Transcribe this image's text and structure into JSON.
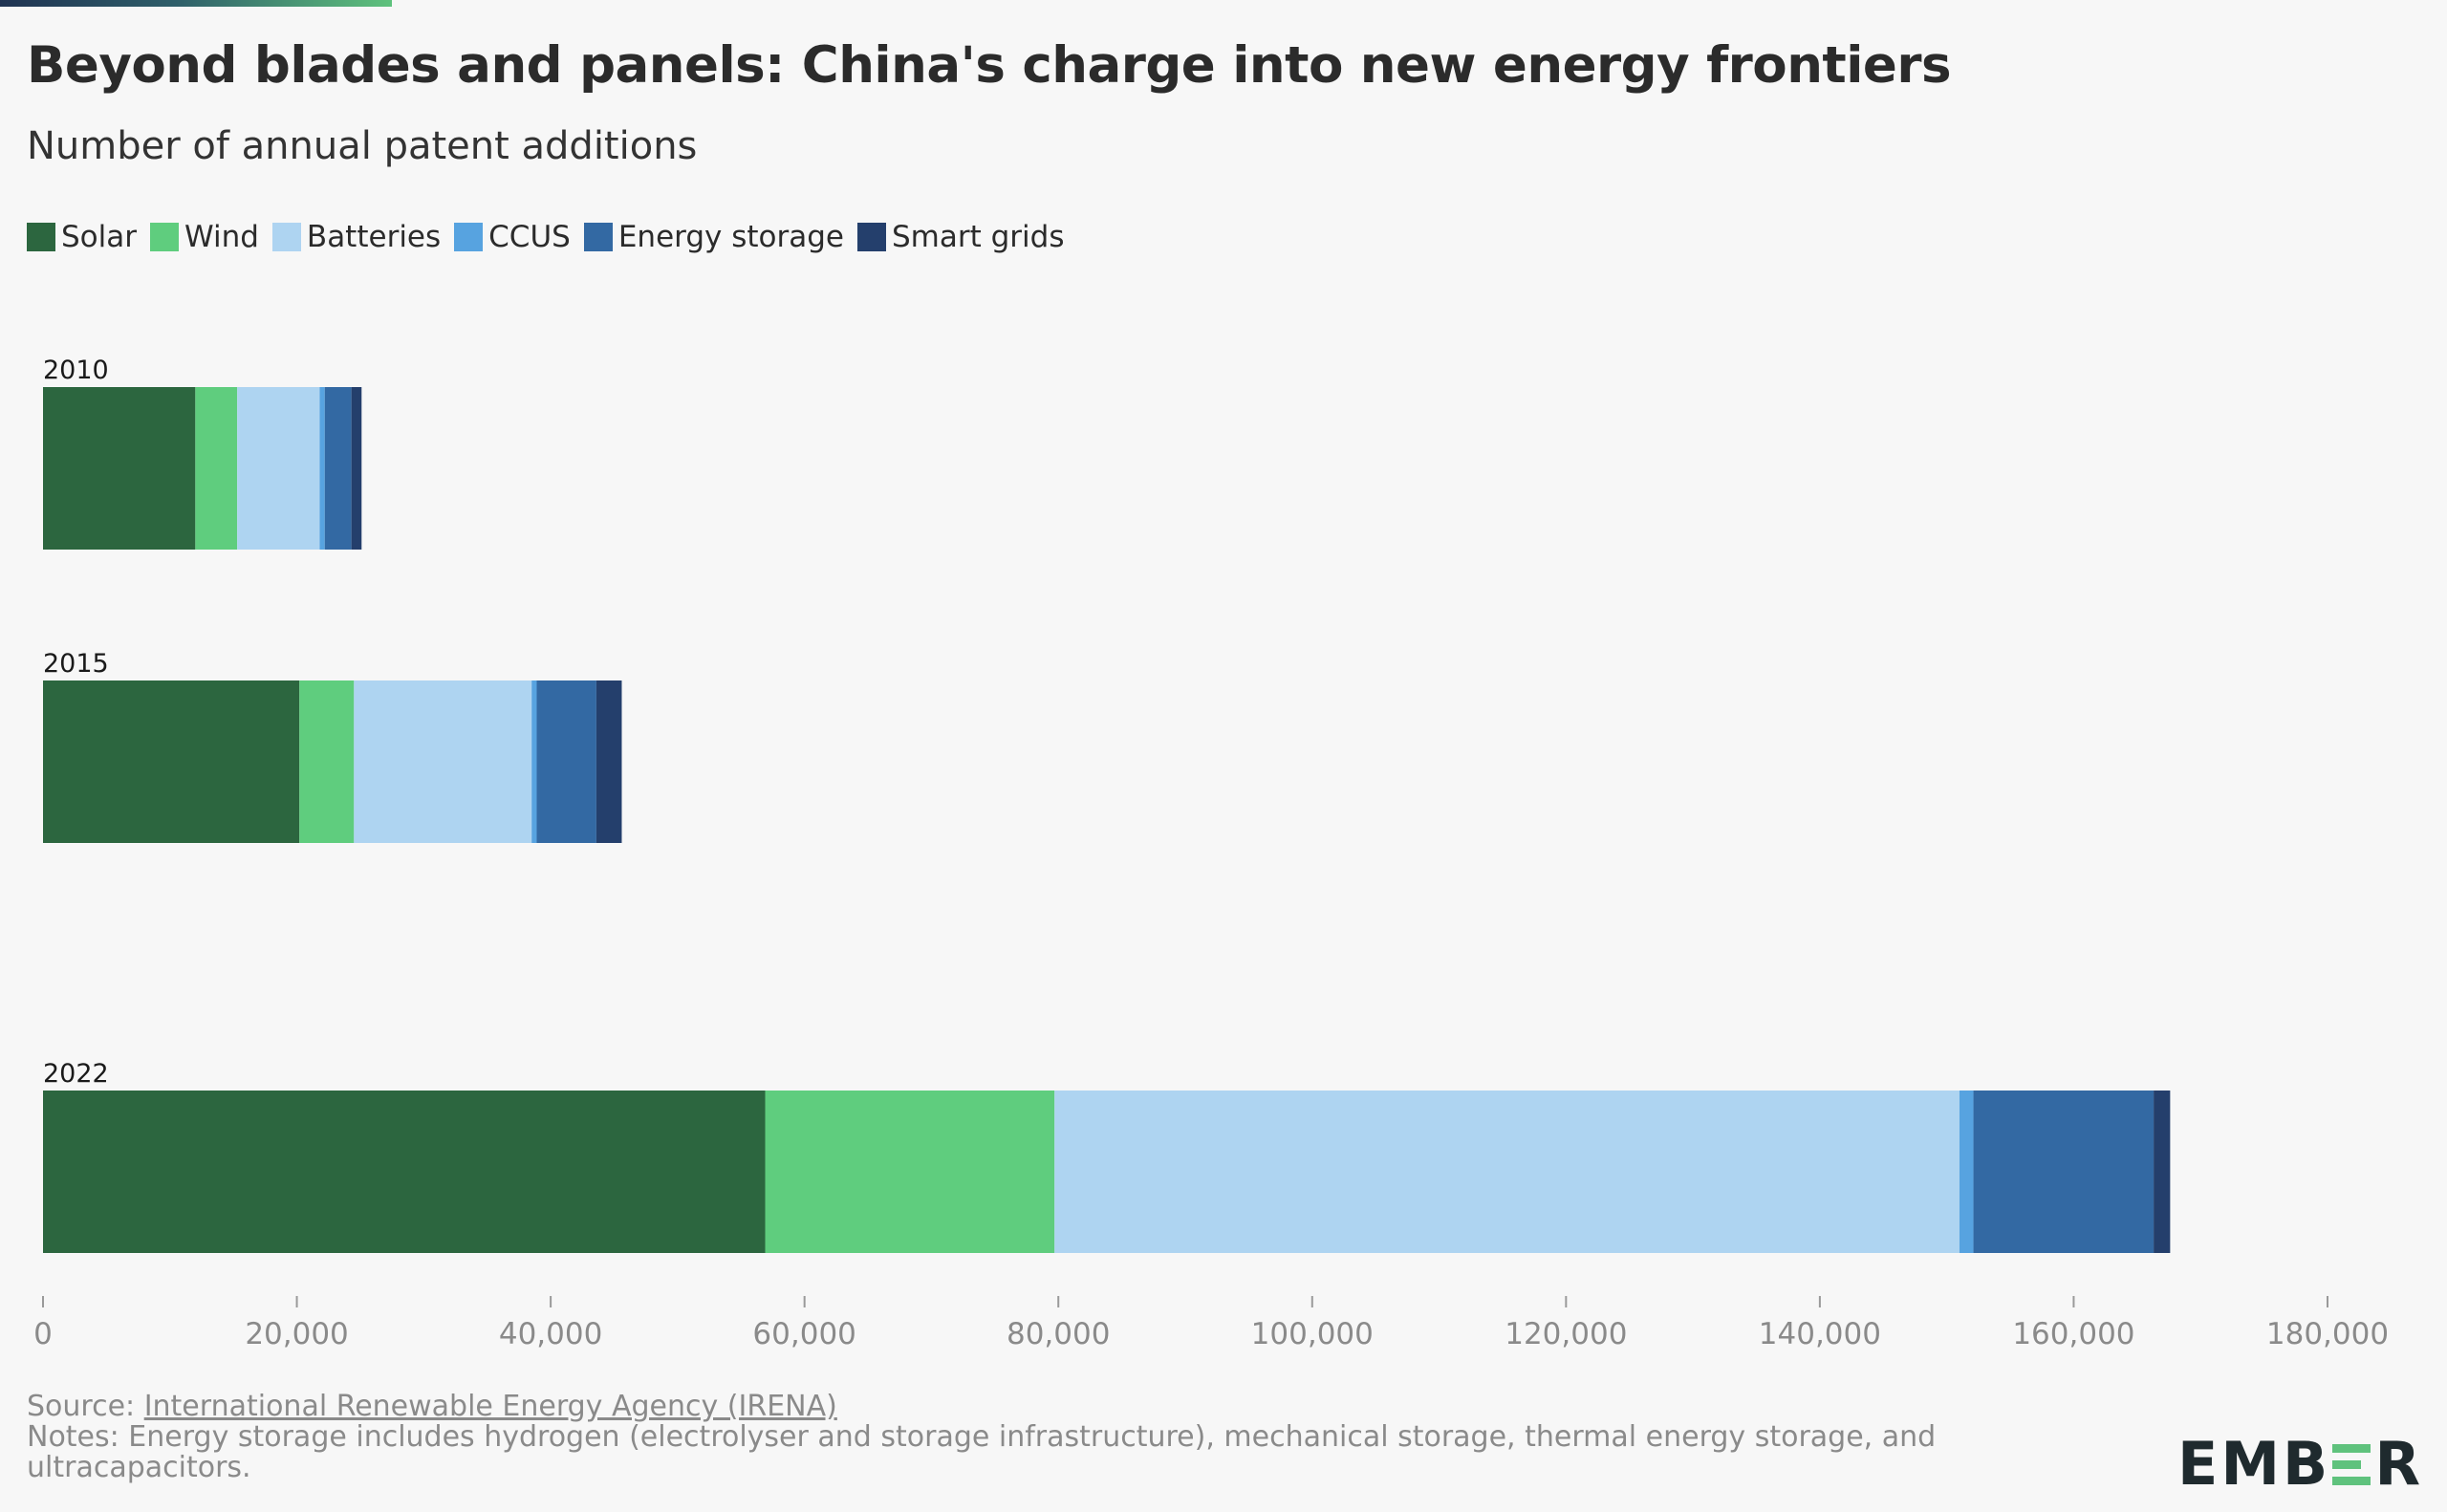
{
  "header": {
    "title": "Beyond blades and panels: China's charge into new energy frontiers",
    "subtitle": "Number of annual patent additions"
  },
  "legend": [
    {
      "label": "Solar",
      "color": "#2c663f"
    },
    {
      "label": "Wind",
      "color": "#5fcd7e"
    },
    {
      "label": "Batteries",
      "color": "#aed4f1"
    },
    {
      "label": "CCUS",
      "color": "#57a3e0"
    },
    {
      "label": "Energy storage",
      "color": "#3369a3"
    },
    {
      "label": "Smart grids",
      "color": "#243f6c"
    }
  ],
  "chart_data": {
    "type": "bar",
    "orientation": "horizontal",
    "stacked": true,
    "categories": [
      "2010",
      "2015",
      "2022"
    ],
    "series": [
      {
        "name": "Solar",
        "color": "#2c663f",
        "values": [
          12000,
          20200,
          56900
        ]
      },
      {
        "name": "Wind",
        "color": "#5fcd7e",
        "values": [
          3300,
          4300,
          22800
        ]
      },
      {
        "name": "Batteries",
        "color": "#aed4f1",
        "values": [
          6500,
          14000,
          71300
        ]
      },
      {
        "name": "CCUS",
        "color": "#57a3e0",
        "values": [
          400,
          400,
          1100
        ]
      },
      {
        "name": "Energy storage",
        "color": "#3369a3",
        "values": [
          2100,
          4700,
          14200
        ]
      },
      {
        "name": "Smart grids",
        "color": "#243f6c",
        "values": [
          800,
          2000,
          1300
        ]
      }
    ],
    "xlim": [
      0,
      180000
    ],
    "x_ticks": [
      0,
      20000,
      40000,
      60000,
      80000,
      100000,
      120000,
      140000,
      160000,
      180000
    ],
    "x_tick_labels": [
      "0",
      "20,000",
      "40,000",
      "60,000",
      "80,000",
      "100,000",
      "120,000",
      "140,000",
      "160,000",
      "180,000"
    ],
    "grid": false,
    "legend_position": "top-left"
  },
  "footer": {
    "source_prefix": "Source: ",
    "source_link": "International Renewable Energy Agency (IRENA)",
    "notes": "Notes: Energy storage includes hydrogen (electrolyser and storage infrastructure), mechanical storage, thermal energy storage, and ultracapacitors."
  },
  "logo": {
    "text_left": "EMB",
    "text_right": "R"
  }
}
